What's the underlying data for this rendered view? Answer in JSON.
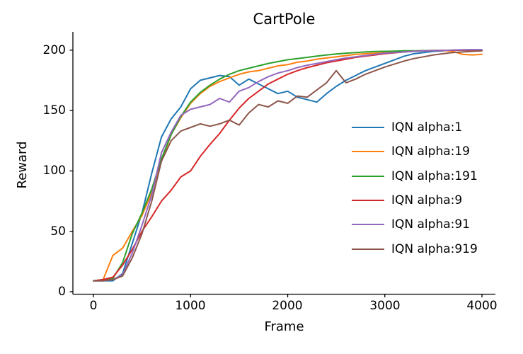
{
  "chart_data": {
    "type": "line",
    "title": "CartPole",
    "xlabel": "Frame",
    "ylabel": "Reward",
    "x_ticks": [
      0,
      1000,
      2000,
      3000,
      4000
    ],
    "y_ticks": [
      0,
      50,
      100,
      150,
      200
    ],
    "xlim": [
      -210,
      4140
    ],
    "ylim": [
      -2,
      215
    ],
    "grid": false,
    "legend_position": "center right",
    "legend_frame": false,
    "x": [
      0,
      100,
      200,
      300,
      400,
      500,
      600,
      700,
      800,
      900,
      1000,
      1100,
      1200,
      1300,
      1400,
      1500,
      1600,
      1700,
      1800,
      1900,
      2000,
      2100,
      2200,
      2300,
      2400,
      2500,
      2600,
      2700,
      2800,
      2900,
      3000,
      3100,
      3200,
      3300,
      3400,
      3500,
      3600,
      3700,
      3800,
      3900,
      4000
    ],
    "series": [
      {
        "name": "IQN alpha:1",
        "color": "#1f77b4",
        "values": [
          9,
          9,
          9,
          15,
          40,
          65,
          98,
          128,
          143,
          153,
          168,
          175,
          177,
          179,
          178,
          171,
          176,
          172,
          168,
          164,
          166,
          161,
          159,
          157,
          164,
          170,
          175,
          179,
          183,
          186,
          189,
          192,
          195,
          197,
          198,
          199,
          199.5,
          200,
          200,
          200,
          200
        ]
      },
      {
        "name": "IQN alpha:19",
        "color": "#ff7f0e",
        "values": [
          9,
          10,
          30,
          36,
          50,
          63,
          82,
          108,
          130,
          144,
          156,
          164,
          170,
          174,
          177,
          180,
          182,
          183,
          185,
          187,
          188,
          190,
          191,
          192.5,
          193.5,
          194.5,
          195.5,
          196.5,
          197,
          197.5,
          198,
          198.5,
          199,
          199.3,
          199.5,
          199.7,
          199.8,
          199,
          196.5,
          196,
          196.5
        ]
      },
      {
        "name": "IQN alpha:191",
        "color": "#2ca02c",
        "values": [
          9,
          10,
          11,
          24,
          48,
          65,
          85,
          110,
          130,
          145,
          157,
          165,
          171,
          176,
          180,
          183,
          185,
          187,
          189,
          190.5,
          192,
          193,
          194,
          195,
          196,
          196.8,
          197.5,
          198,
          198.5,
          198.8,
          199,
          199.2,
          199.4,
          199.5,
          199.6,
          199.7,
          199.8,
          199.9,
          200,
          200,
          200
        ]
      },
      {
        "name": "IQN alpha:9",
        "color": "#d62728",
        "values": [
          9,
          10,
          12,
          22,
          35,
          50,
          62,
          75,
          84,
          95,
          100,
          112,
          122,
          131,
          142,
          152,
          160,
          166,
          172,
          176,
          180,
          183,
          185.5,
          187.5,
          189.5,
          191,
          192.5,
          194,
          195,
          196,
          197,
          197.8,
          198.5,
          199,
          199.3,
          199.6,
          199.8,
          199.9,
          200,
          200,
          200
        ]
      },
      {
        "name": "IQN alpha:91",
        "color": "#9467bd",
        "values": [
          9,
          9,
          10,
          14,
          32,
          55,
          80,
          115,
          132,
          146,
          151,
          153,
          155,
          160,
          157,
          166,
          169,
          174,
          178,
          181,
          183,
          185.5,
          187.5,
          189,
          190.5,
          192,
          193.5,
          194.5,
          195.5,
          196.5,
          197.5,
          198,
          198.5,
          199,
          199.3,
          199.6,
          199.8,
          200,
          200.3,
          200.4,
          200.4
        ]
      },
      {
        "name": "IQN alpha:919",
        "color": "#8c564b",
        "values": [
          9,
          9,
          10,
          13,
          28,
          48,
          75,
          108,
          125,
          133,
          136,
          139,
          137,
          139,
          142,
          138,
          148,
          155,
          153,
          158,
          156,
          162,
          161,
          167,
          173,
          183,
          173,
          176,
          180,
          183,
          186,
          188.5,
          191,
          193,
          194.5,
          196,
          197,
          198,
          198.5,
          199,
          199.5
        ]
      }
    ]
  }
}
